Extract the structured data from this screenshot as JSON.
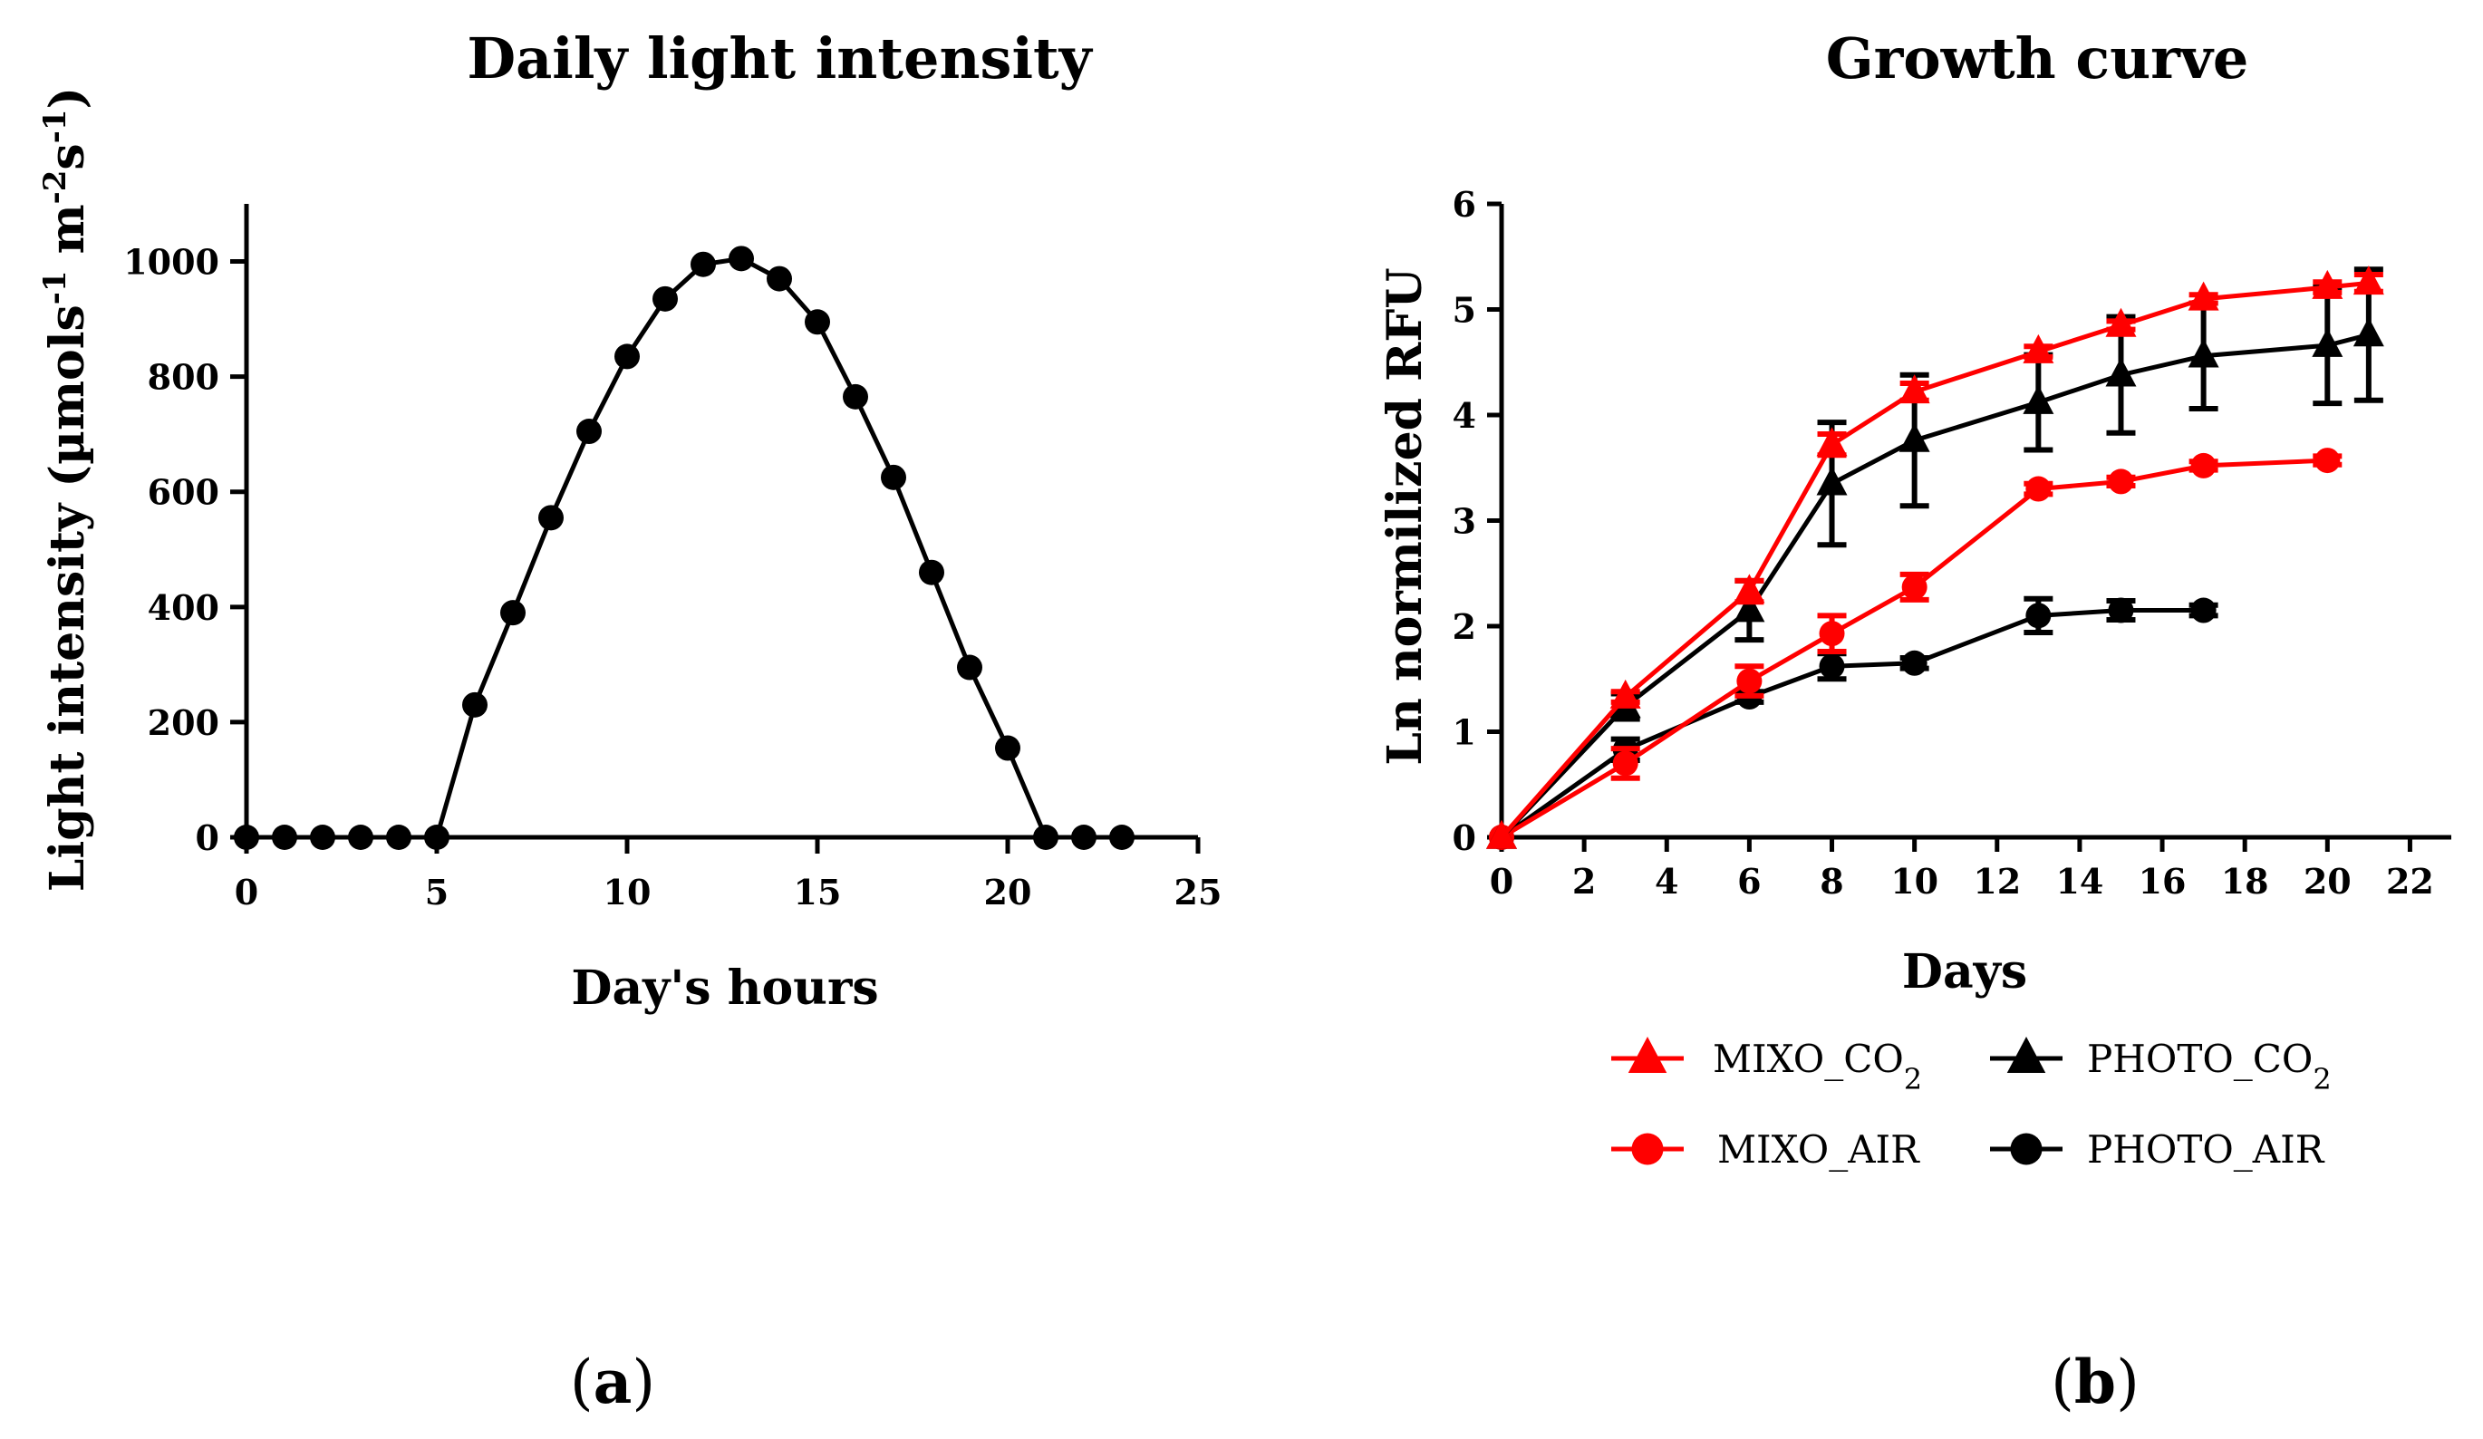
{
  "chart_data": [
    {
      "type": "line",
      "title": "Daily light intensity",
      "xlabel": "Day's hours",
      "ylabel_parts": [
        "Light intensity (µmols",
        "-1",
        " m",
        "-2",
        "s",
        "-1",
        ")"
      ],
      "xlim": [
        0,
        25
      ],
      "ylim": [
        0,
        1100
      ],
      "xticks": [
        0,
        5,
        10,
        15,
        20,
        25
      ],
      "yticks": [
        0,
        200,
        400,
        600,
        800,
        1000
      ],
      "panel_label": "a",
      "series": [
        {
          "color": "#000000",
          "marker": "circle",
          "x": [
            0,
            1,
            2,
            3,
            4,
            5,
            6,
            7,
            8,
            9,
            10,
            11,
            12,
            13,
            14,
            15,
            16,
            17,
            18,
            19,
            20,
            21,
            22,
            23
          ],
          "y": [
            0,
            0,
            0,
            0,
            0,
            0,
            230,
            390,
            555,
            705,
            835,
            935,
            995,
            1005,
            970,
            895,
            765,
            625,
            460,
            295,
            155,
            0,
            0,
            0
          ]
        }
      ]
    },
    {
      "type": "line",
      "title": "Growth curve",
      "xlabel": "Days",
      "ylabel": "Ln normilized RFU",
      "xlim": [
        0,
        23
      ],
      "ylim": [
        0,
        6
      ],
      "xticks": [
        0,
        2,
        4,
        6,
        8,
        10,
        12,
        14,
        16,
        18,
        20,
        22
      ],
      "yticks": [
        0,
        1,
        2,
        3,
        4,
        5,
        6
      ],
      "panel_label": "b",
      "legend_position": "bottom",
      "series": [
        {
          "name_parts": [
            "MIXO_CO",
            "2"
          ],
          "color": "#ff0000",
          "marker": "triangle",
          "x": [
            0,
            3,
            6,
            8,
            10,
            13,
            15,
            17,
            20,
            21
          ],
          "y": [
            0,
            1.33,
            2.33,
            3.72,
            4.22,
            4.6,
            4.85,
            5.1,
            5.21,
            5.25
          ],
          "err": [
            0,
            0.05,
            0.1,
            0.1,
            0.08,
            0.05,
            0.04,
            0.04,
            0.05,
            0.08
          ]
        },
        {
          "name_parts": [
            "PHOTO_CO",
            "2"
          ],
          "color": "#000000",
          "marker": "triangle",
          "x": [
            0,
            3,
            6,
            8,
            10,
            13,
            15,
            17,
            20,
            21
          ],
          "y": [
            0,
            1.24,
            2.15,
            3.35,
            3.76,
            4.12,
            4.38,
            4.56,
            4.66,
            4.76
          ],
          "err": [
            0,
            0.12,
            0.28,
            0.58,
            0.62,
            0.45,
            0.55,
            0.5,
            0.55,
            0.62
          ]
        },
        {
          "name": "MIXO_AIR",
          "color": "#ff0000",
          "marker": "circle",
          "x": [
            0,
            3,
            6,
            8,
            10,
            13,
            15,
            17,
            20
          ],
          "y": [
            0,
            0.7,
            1.48,
            1.93,
            2.37,
            3.3,
            3.37,
            3.52,
            3.57
          ],
          "err": [
            0,
            0.14,
            0.14,
            0.17,
            0.12,
            0.05,
            0.04,
            0.04,
            0.04
          ]
        },
        {
          "name": "PHOTO_AIR",
          "color": "#000000",
          "marker": "circle",
          "x": [
            0,
            3,
            6,
            8,
            10,
            13,
            15,
            17
          ],
          "y": [
            0,
            0.83,
            1.33,
            1.62,
            1.65,
            2.1,
            2.15,
            2.15
          ],
          "err": [
            0,
            0.1,
            0.05,
            0.12,
            0.05,
            0.16,
            0.09,
            0.05
          ]
        }
      ]
    }
  ]
}
